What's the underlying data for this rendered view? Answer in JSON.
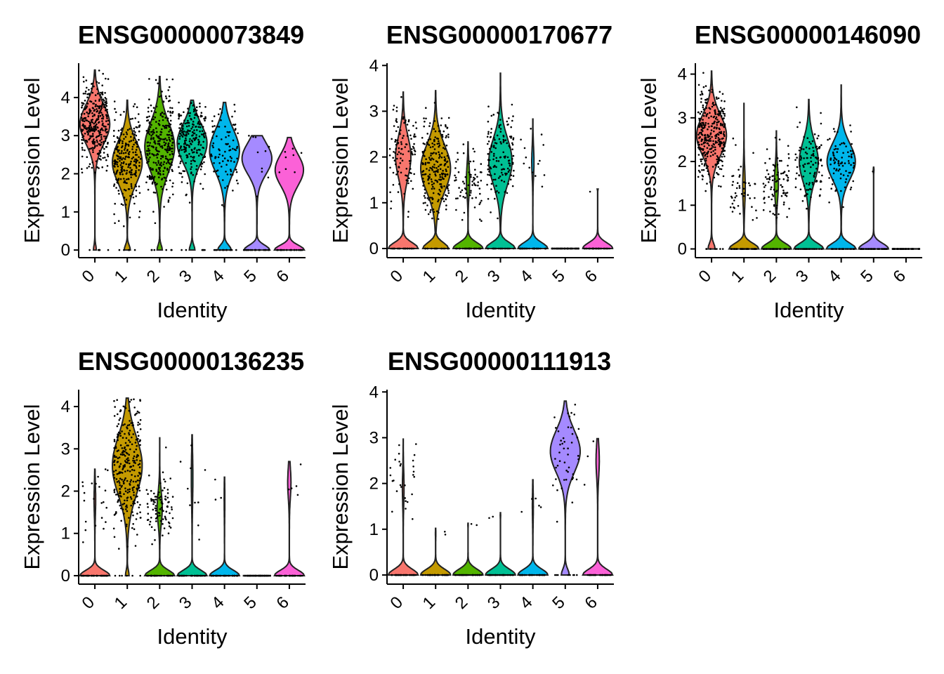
{
  "chart_data": [
    {
      "type": "violin",
      "title": "ENSG00000073849",
      "xlabel": "Identity",
      "ylabel": "Expression Level",
      "categories": [
        "0",
        "1",
        "2",
        "3",
        "4",
        "5",
        "6"
      ],
      "ylim": [
        -0.2,
        4.9
      ],
      "yticks": [
        0,
        1,
        2,
        3,
        4
      ],
      "colors": [
        "#F8766D",
        "#C49A00",
        "#53B400",
        "#00C094",
        "#00B6EB",
        "#A58AFF",
        "#FB61D7"
      ],
      "series": [
        {
          "name": "0",
          "max": 4.72,
          "zero_frac": 0.08,
          "nonzero": {
            "mean": 3.3,
            "sd": 0.55,
            "n": 330
          }
        },
        {
          "name": "1",
          "max": 3.93,
          "zero_frac": 0.16,
          "nonzero": {
            "mean": 2.3,
            "sd": 0.6,
            "n": 260
          }
        },
        {
          "name": "2",
          "max": 4.55,
          "zero_frac": 0.14,
          "nonzero": {
            "mean": 2.7,
            "sd": 0.7,
            "n": 300
          }
        },
        {
          "name": "3",
          "max": 3.93,
          "zero_frac": 0.15,
          "nonzero": {
            "mean": 2.8,
            "sd": 0.55,
            "n": 230
          }
        },
        {
          "name": "4",
          "max": 3.87,
          "zero_frac": 0.3,
          "nonzero": {
            "mean": 2.6,
            "sd": 0.6,
            "n": 90
          }
        },
        {
          "name": "5",
          "max": 3.0,
          "zero_frac": 0.45,
          "nonzero": {
            "mean": 2.4,
            "sd": 0.45,
            "n": 10
          }
        },
        {
          "name": "6",
          "max": 2.95,
          "zero_frac": 0.5,
          "nonzero": {
            "mean": 2.1,
            "sd": 0.45,
            "n": 8
          }
        }
      ]
    },
    {
      "type": "violin",
      "title": "ENSG00000170677",
      "xlabel": "Identity",
      "ylabel": "Expression Level",
      "categories": [
        "0",
        "1",
        "2",
        "3",
        "4",
        "5",
        "6"
      ],
      "ylim": [
        -0.2,
        4.05
      ],
      "yticks": [
        0,
        1,
        2,
        3,
        4
      ],
      "colors": [
        "#F8766D",
        "#C49A00",
        "#53B400",
        "#00C094",
        "#00B6EB",
        "#A58AFF",
        "#FB61D7"
      ],
      "series": [
        {
          "name": "0",
          "max": 3.42,
          "zero_frac": 0.65,
          "nonzero": {
            "mean": 2.0,
            "sd": 0.5,
            "n": 110
          }
        },
        {
          "name": "1",
          "max": 3.45,
          "zero_frac": 0.45,
          "nonzero": {
            "mean": 1.75,
            "sd": 0.55,
            "n": 230
          }
        },
        {
          "name": "2",
          "max": 2.33,
          "zero_frac": 0.9,
          "nonzero": {
            "mean": 1.5,
            "sd": 0.35,
            "n": 70
          }
        },
        {
          "name": "3",
          "max": 3.83,
          "zero_frac": 0.55,
          "nonzero": {
            "mean": 1.9,
            "sd": 0.55,
            "n": 140
          }
        },
        {
          "name": "4",
          "max": 2.83,
          "zero_frac": 0.93,
          "nonzero": {
            "mean": 1.9,
            "sd": 0.35,
            "n": 14
          }
        },
        {
          "name": "5",
          "max": 0,
          "zero_frac": 1.0,
          "nonzero": {
            "mean": 0,
            "sd": 0,
            "n": 0
          }
        },
        {
          "name": "6",
          "max": 1.3,
          "zero_frac": 0.97,
          "nonzero": {
            "mean": 1.3,
            "sd": 0.02,
            "n": 1
          }
        }
      ]
    },
    {
      "type": "violin",
      "title": "ENSG00000146090",
      "xlabel": "Identity",
      "ylabel": "Expression Level",
      "categories": [
        "0",
        "1",
        "2",
        "3",
        "4",
        "5",
        "6"
      ],
      "ylim": [
        -0.2,
        4.25
      ],
      "yticks": [
        0,
        1,
        2,
        3,
        4
      ],
      "colors": [
        "#F8766D",
        "#C49A00",
        "#53B400",
        "#00C094",
        "#00B6EB",
        "#A58AFF",
        "#FB61D7"
      ],
      "series": [
        {
          "name": "0",
          "max": 4.07,
          "zero_frac": 0.18,
          "nonzero": {
            "mean": 2.6,
            "sd": 0.5,
            "n": 320
          }
        },
        {
          "name": "1",
          "max": 3.33,
          "zero_frac": 0.92,
          "nonzero": {
            "mean": 1.4,
            "sd": 0.45,
            "n": 45
          }
        },
        {
          "name": "2",
          "max": 2.7,
          "zero_frac": 0.88,
          "nonzero": {
            "mean": 1.5,
            "sd": 0.4,
            "n": 90
          }
        },
        {
          "name": "3",
          "max": 3.42,
          "zero_frac": 0.6,
          "nonzero": {
            "mean": 2.0,
            "sd": 0.5,
            "n": 110
          }
        },
        {
          "name": "4",
          "max": 3.75,
          "zero_frac": 0.5,
          "nonzero": {
            "mean": 2.0,
            "sd": 0.45,
            "n": 85
          }
        },
        {
          "name": "5",
          "max": 1.87,
          "zero_frac": 0.98,
          "nonzero": {
            "mean": 1.8,
            "sd": 0.05,
            "n": 1
          }
        },
        {
          "name": "6",
          "max": 0,
          "zero_frac": 1.0,
          "nonzero": {
            "mean": 0,
            "sd": 0,
            "n": 0
          }
        }
      ]
    },
    {
      "type": "violin",
      "title": "ENSG00000136235",
      "xlabel": "Identity",
      "ylabel": "Expression Level",
      "categories": [
        "0",
        "1",
        "2",
        "3",
        "4",
        "5",
        "6"
      ],
      "ylim": [
        -0.2,
        4.4
      ],
      "yticks": [
        0,
        1,
        2,
        3,
        4
      ],
      "colors": [
        "#F8766D",
        "#C49A00",
        "#53B400",
        "#00C094",
        "#00B6EB",
        "#A58AFF",
        "#FB61D7"
      ],
      "series": [
        {
          "name": "0",
          "max": 2.52,
          "zero_frac": 0.95,
          "nonzero": {
            "mean": 1.8,
            "sd": 0.4,
            "n": 22
          }
        },
        {
          "name": "1",
          "max": 4.2,
          "zero_frac": 0.1,
          "nonzero": {
            "mean": 2.6,
            "sd": 0.75,
            "n": 290
          }
        },
        {
          "name": "2",
          "max": 3.26,
          "zero_frac": 0.85,
          "nonzero": {
            "mean": 1.6,
            "sd": 0.4,
            "n": 90
          }
        },
        {
          "name": "3",
          "max": 3.33,
          "zero_frac": 0.95,
          "nonzero": {
            "mean": 2.3,
            "sd": 0.6,
            "n": 10
          }
        },
        {
          "name": "4",
          "max": 2.33,
          "zero_frac": 0.98,
          "nonzero": {
            "mean": 1.8,
            "sd": 0.4,
            "n": 3
          }
        },
        {
          "name": "5",
          "max": 0,
          "zero_frac": 1.0,
          "nonzero": {
            "mean": 0,
            "sd": 0,
            "n": 0
          }
        },
        {
          "name": "6",
          "max": 2.7,
          "zero_frac": 0.9,
          "nonzero": {
            "mean": 2.2,
            "sd": 0.4,
            "n": 5
          }
        }
      ]
    },
    {
      "type": "violin",
      "title": "ENSG00000111913",
      "xlabel": "Identity",
      "ylabel": "Expression Level",
      "categories": [
        "0",
        "1",
        "2",
        "3",
        "4",
        "5",
        "6"
      ],
      "ylim": [
        -0.2,
        4.05
      ],
      "yticks": [
        0,
        1,
        2,
        3,
        4
      ],
      "colors": [
        "#F8766D",
        "#C49A00",
        "#53B400",
        "#00C094",
        "#00B6EB",
        "#A58AFF",
        "#FB61D7"
      ],
      "series": [
        {
          "name": "0",
          "max": 2.97,
          "zero_frac": 0.95,
          "nonzero": {
            "mean": 1.9,
            "sd": 0.4,
            "n": 28
          }
        },
        {
          "name": "1",
          "max": 1.02,
          "zero_frac": 0.99,
          "nonzero": {
            "mean": 0.9,
            "sd": 0.1,
            "n": 2
          }
        },
        {
          "name": "2",
          "max": 1.13,
          "zero_frac": 0.99,
          "nonzero": {
            "mean": 1.1,
            "sd": 0.03,
            "n": 2
          }
        },
        {
          "name": "3",
          "max": 1.36,
          "zero_frac": 0.99,
          "nonzero": {
            "mean": 1.3,
            "sd": 0.05,
            "n": 2
          }
        },
        {
          "name": "4",
          "max": 2.08,
          "zero_frac": 0.97,
          "nonzero": {
            "mean": 1.5,
            "sd": 0.35,
            "n": 5
          }
        },
        {
          "name": "5",
          "max": 3.8,
          "zero_frac": 0.2,
          "nonzero": {
            "mean": 2.7,
            "sd": 0.5,
            "n": 45
          }
        },
        {
          "name": "6",
          "max": 2.98,
          "zero_frac": 0.9,
          "nonzero": {
            "mean": 2.5,
            "sd": 0.4,
            "n": 3
          }
        }
      ]
    }
  ]
}
